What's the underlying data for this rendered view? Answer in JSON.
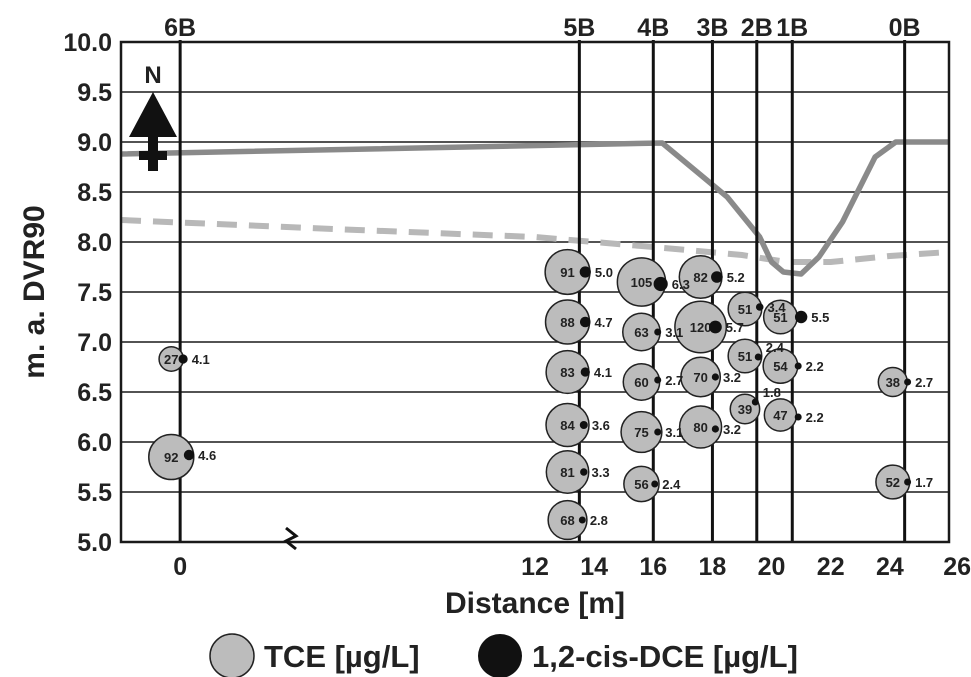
{
  "chart_data": {
    "type": "scatter",
    "title": "",
    "xlabel": "Distance [m]",
    "ylabel": "m. a. DVR90",
    "xlim": [
      -2,
      26
    ],
    "ylim": [
      5.0,
      10.0
    ],
    "x_axis_break": true,
    "x_ticks": [
      "0",
      "12",
      "14",
      "16",
      "18",
      "20",
      "22",
      "24",
      "26"
    ],
    "y_ticks": [
      "10.0",
      "9.5",
      "9.0",
      "8.5",
      "8.0",
      "7.5",
      "7.0",
      "6.5",
      "6.0",
      "5.5",
      "5.0"
    ],
    "grid": "horizontal",
    "north_arrow": "N",
    "boreholes": [
      {
        "name": "6B",
        "x": 0
      },
      {
        "name": "5B",
        "x": 13.5
      },
      {
        "name": "4B",
        "x": 16
      },
      {
        "name": "3B",
        "x": 18
      },
      {
        "name": "2B",
        "x": 19.5
      },
      {
        "name": "1B",
        "x": 20.7
      },
      {
        "name": "0B",
        "x": 24.5
      }
    ],
    "surface_line": {
      "color": "#8a8a8a",
      "points": [
        [
          -2,
          8.88
        ],
        [
          16.3,
          8.99
        ],
        [
          18.5,
          8.45
        ],
        [
          19.6,
          8.05
        ],
        [
          20.0,
          7.8
        ],
        [
          20.4,
          7.7
        ],
        [
          21.0,
          7.68
        ],
        [
          21.6,
          7.85
        ],
        [
          22.4,
          8.2
        ],
        [
          23.5,
          8.85
        ],
        [
          24.2,
          9.0
        ],
        [
          26,
          9.0
        ]
      ]
    },
    "water_table_line": {
      "color": "#b8b8b8",
      "style": "dashed",
      "points": [
        [
          -2,
          8.22
        ],
        [
          6,
          8.12
        ],
        [
          12,
          8.05
        ],
        [
          16,
          7.95
        ],
        [
          19,
          7.87
        ],
        [
          20.5,
          7.8
        ],
        [
          22,
          7.8
        ],
        [
          24,
          7.86
        ],
        [
          26,
          7.9
        ]
      ]
    },
    "series": [
      {
        "name": "TCE [µg/L]",
        "color": "#bcbcbc",
        "points": [
          {
            "x": -0.3,
            "y": 6.83,
            "value": "27"
          },
          {
            "x": -0.3,
            "y": 5.85,
            "value": "92"
          },
          {
            "x": 13.1,
            "y": 7.7,
            "value": "91"
          },
          {
            "x": 13.1,
            "y": 7.2,
            "value": "88"
          },
          {
            "x": 13.1,
            "y": 6.7,
            "value": "83"
          },
          {
            "x": 13.1,
            "y": 6.17,
            "value": "84"
          },
          {
            "x": 13.1,
            "y": 5.7,
            "value": "81"
          },
          {
            "x": 13.1,
            "y": 5.22,
            "value": "68"
          },
          {
            "x": 15.6,
            "y": 7.6,
            "value": "105"
          },
          {
            "x": 15.6,
            "y": 7.1,
            "value": "63"
          },
          {
            "x": 15.6,
            "y": 6.6,
            "value": "60"
          },
          {
            "x": 15.6,
            "y": 6.1,
            "value": "75"
          },
          {
            "x": 15.6,
            "y": 5.58,
            "value": "56"
          },
          {
            "x": 17.6,
            "y": 7.65,
            "value": "82"
          },
          {
            "x": 17.6,
            "y": 7.15,
            "value": "120"
          },
          {
            "x": 17.6,
            "y": 6.65,
            "value": "70"
          },
          {
            "x": 17.6,
            "y": 6.15,
            "value": "80"
          },
          {
            "x": 19.1,
            "y": 7.33,
            "value": "51"
          },
          {
            "x": 19.1,
            "y": 6.86,
            "value": "51"
          },
          {
            "x": 19.1,
            "y": 6.33,
            "value": "39"
          },
          {
            "x": 20.3,
            "y": 7.25,
            "value": "51"
          },
          {
            "x": 20.3,
            "y": 6.76,
            "value": "54"
          },
          {
            "x": 20.3,
            "y": 6.27,
            "value": "47"
          },
          {
            "x": 24.1,
            "y": 6.6,
            "value": "38"
          },
          {
            "x": 24.1,
            "y": 5.6,
            "value": "52"
          }
        ]
      },
      {
        "name": "1,2-cis-DCE [µg/L]",
        "color": "#111111",
        "points": [
          {
            "x": 0.1,
            "y": 6.83,
            "value": "4.1"
          },
          {
            "x": 0.3,
            "y": 5.87,
            "value": "4.6"
          },
          {
            "x": 13.7,
            "y": 7.7,
            "value": "5.0"
          },
          {
            "x": 13.7,
            "y": 7.2,
            "value": "4.7"
          },
          {
            "x": 13.7,
            "y": 6.7,
            "value": "4.1"
          },
          {
            "x": 13.65,
            "y": 6.17,
            "value": "3.6"
          },
          {
            "x": 13.65,
            "y": 5.7,
            "value": "3.3"
          },
          {
            "x": 13.6,
            "y": 5.22,
            "value": "2.8"
          },
          {
            "x": 16.25,
            "y": 7.58,
            "value": "6.3"
          },
          {
            "x": 16.15,
            "y": 7.1,
            "value": "3.1"
          },
          {
            "x": 16.15,
            "y": 6.62,
            "value": "2.7"
          },
          {
            "x": 16.15,
            "y": 6.1,
            "value": "3.1"
          },
          {
            "x": 16.05,
            "y": 5.58,
            "value": "2.4"
          },
          {
            "x": 18.15,
            "y": 7.65,
            "value": "5.2"
          },
          {
            "x": 18.1,
            "y": 7.15,
            "value": "5.7"
          },
          {
            "x": 18.1,
            "y": 6.65,
            "value": "3.2"
          },
          {
            "x": 18.1,
            "y": 6.13,
            "value": "3.2"
          },
          {
            "x": 19.6,
            "y": 7.35,
            "value": "3.4"
          },
          {
            "x": 19.55,
            "y": 6.85,
            "value": "2.4"
          },
          {
            "x": 19.45,
            "y": 6.4,
            "value": "1.8"
          },
          {
            "x": 21.0,
            "y": 7.25,
            "value": "5.5"
          },
          {
            "x": 20.9,
            "y": 6.76,
            "value": "2.2"
          },
          {
            "x": 20.9,
            "y": 6.25,
            "value": "2.2"
          },
          {
            "x": 24.6,
            "y": 6.6,
            "value": "2.7"
          },
          {
            "x": 24.6,
            "y": 5.6,
            "value": "1.7"
          }
        ]
      }
    ],
    "legend_placement": "bottom"
  }
}
